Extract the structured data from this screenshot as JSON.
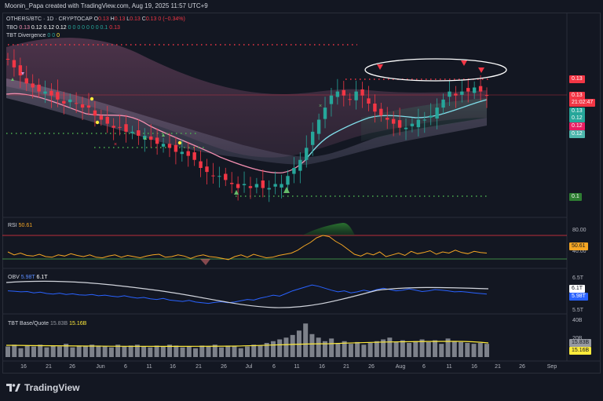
{
  "header": {
    "text": "Moonin_Papa created with TradingView.com, Aug 19, 2025 11:57 UTC+9"
  },
  "legend": {
    "symbol_line": "OTHERS/BTC · 1D · CRYPTOCAP",
    "ohlc": [
      {
        "k": "O",
        "v": "0.13"
      },
      {
        "k": "H",
        "v": "0.13"
      },
      {
        "k": "L",
        "v": "0.13"
      },
      {
        "k": "C",
        "v": "0.13"
      }
    ],
    "change": "0 (−0.34%)",
    "tbo_name": "TBO",
    "tbo_values": [
      "0.13",
      "0.12",
      "0.12",
      "0.12",
      "0",
      "0",
      "0",
      "0",
      "0",
      "0",
      "0",
      "0.1",
      "0.13"
    ],
    "tbt_div_name": "TBT Divergence",
    "tbt_div_values": [
      "0",
      "0",
      "0"
    ]
  },
  "panes": {
    "rsi": {
      "name": "RSI",
      "value": "50.61",
      "levels": [
        "80.00",
        "40.00"
      ],
      "badge": "50.61"
    },
    "obv": {
      "name": "OBV",
      "v1": "5.98T",
      "v2": "6.1T",
      "ticks": [
        "6.5T",
        "5.5T"
      ],
      "badge1": "6.1T",
      "badge2": "5.98T"
    },
    "tbt": {
      "name": "TBT Base/Quote",
      "v1": "15.83B",
      "v2": "15.16B",
      "ticks": [
        "40B",
        "20B"
      ],
      "badge1": "15.83B",
      "badge2": "15.16B"
    }
  },
  "price_axis": {
    "badges": [
      {
        "text": "0.13",
        "color": "#f23645"
      },
      {
        "text": "0.13",
        "color": "#f23645"
      },
      {
        "text": "21:02:47",
        "color": "#f23645"
      },
      {
        "text": "0.13",
        "color": "#26a69a"
      },
      {
        "text": "0.12",
        "color": "#26a69a"
      },
      {
        "text": "0.12",
        "color": "#e91e63"
      },
      {
        "text": "0.12",
        "color": "#4db6ac"
      },
      {
        "text": "0.1",
        "color": "#2e7d32"
      }
    ]
  },
  "date_axis": [
    "16",
    "21",
    "26",
    "Jun",
    "6",
    "11",
    "16",
    "21",
    "26",
    "Jul",
    "6",
    "11",
    "16",
    "21",
    "26",
    "Aug",
    "6",
    "11",
    "16",
    "21",
    "26",
    "Sep"
  ],
  "footer": {
    "brand": "TradingView"
  },
  "chart_data": {
    "type": "candlestick",
    "symbol": "OTHERS/BTC",
    "timeframe": "1D",
    "colors": {
      "up": "#26a69a",
      "down": "#f23645",
      "background": "#131722"
    },
    "price_candles_close": [
      0.135,
      0.133,
      0.131,
      0.129,
      0.128,
      0.127,
      0.127,
      0.126,
      0.125,
      0.124,
      0.125,
      0.124,
      0.123,
      0.123,
      0.121,
      0.12,
      0.119,
      0.118,
      0.118,
      0.117,
      0.117,
      0.116,
      0.116,
      0.115,
      0.114,
      0.114,
      0.113,
      0.112,
      0.112,
      0.111,
      0.11,
      0.108,
      0.107,
      0.106,
      0.106,
      0.105,
      0.104,
      0.103,
      0.104,
      0.103,
      0.104,
      0.103,
      0.103,
      0.104,
      0.104,
      0.106,
      0.108,
      0.11,
      0.113,
      0.117,
      0.12,
      0.123,
      0.126,
      0.127,
      0.126,
      0.125,
      0.127,
      0.126,
      0.124,
      0.122,
      0.121,
      0.12,
      0.119,
      0.118,
      0.118,
      0.119,
      0.12,
      0.12,
      0.121,
      0.123,
      0.125,
      0.127,
      0.126,
      0.127,
      0.127,
      0.128,
      0.127,
      0.126
    ],
    "rsi_series": [
      52,
      47,
      50,
      46,
      45,
      48,
      44,
      43,
      47,
      45,
      49,
      46,
      44,
      47,
      43,
      42,
      45,
      47,
      43,
      46,
      44,
      42,
      45,
      47,
      48,
      43,
      44,
      47,
      45,
      41,
      45,
      47,
      44,
      43,
      41,
      39,
      44,
      47,
      43,
      48,
      45,
      42,
      43,
      46,
      48,
      50,
      55,
      62,
      68,
      76,
      80,
      78,
      70,
      64,
      56,
      48,
      45,
      50,
      47,
      52,
      44,
      47,
      50,
      46,
      53,
      49,
      51,
      54,
      48,
      52,
      50,
      55,
      51,
      49,
      53,
      51,
      50
    ],
    "obv_series": [
      6.08,
      6.07,
      6.05,
      6.06,
      6.02,
      6.04,
      6.0,
      5.98,
      6.01,
      5.97,
      5.99,
      5.96,
      5.95,
      5.97,
      5.93,
      5.95,
      5.92,
      5.9,
      5.93,
      5.89,
      5.86,
      5.88,
      5.84,
      5.82,
      5.85,
      5.8,
      5.78,
      5.76,
      5.79,
      5.74,
      5.72,
      5.7,
      5.73,
      5.75,
      5.72,
      5.74,
      5.78,
      5.82,
      5.8,
      5.86,
      5.9,
      5.95,
      5.92,
      6.0,
      6.08,
      6.14,
      6.2,
      6.26,
      6.22,
      6.16,
      6.1,
      6.05,
      6.08,
      6.02,
      6.05,
      6.1,
      6.06,
      6.12,
      6.16,
      6.12,
      6.08,
      6.1,
      6.14,
      6.1,
      6.06,
      6.08,
      6.12,
      6.1,
      6.08,
      6.05,
      6.06,
      6.04,
      6.02,
      6.0,
      5.98
    ],
    "tbt_volume_bars": [
      12,
      14,
      10,
      13,
      12,
      14,
      11,
      13,
      12,
      15,
      11,
      13,
      12,
      14,
      13,
      12,
      11,
      14,
      12,
      13,
      14,
      12,
      11,
      13,
      12,
      14,
      13,
      11,
      12,
      10,
      13,
      12,
      14,
      11,
      13,
      12,
      10,
      12,
      14,
      13,
      16,
      18,
      20,
      22,
      25,
      30,
      38,
      26,
      22,
      18,
      21,
      16,
      18,
      15,
      17,
      14,
      16,
      18,
      20,
      22,
      17,
      19,
      16,
      18,
      20,
      17,
      19,
      15,
      21,
      18,
      17,
      16,
      15,
      16,
      15
    ]
  }
}
